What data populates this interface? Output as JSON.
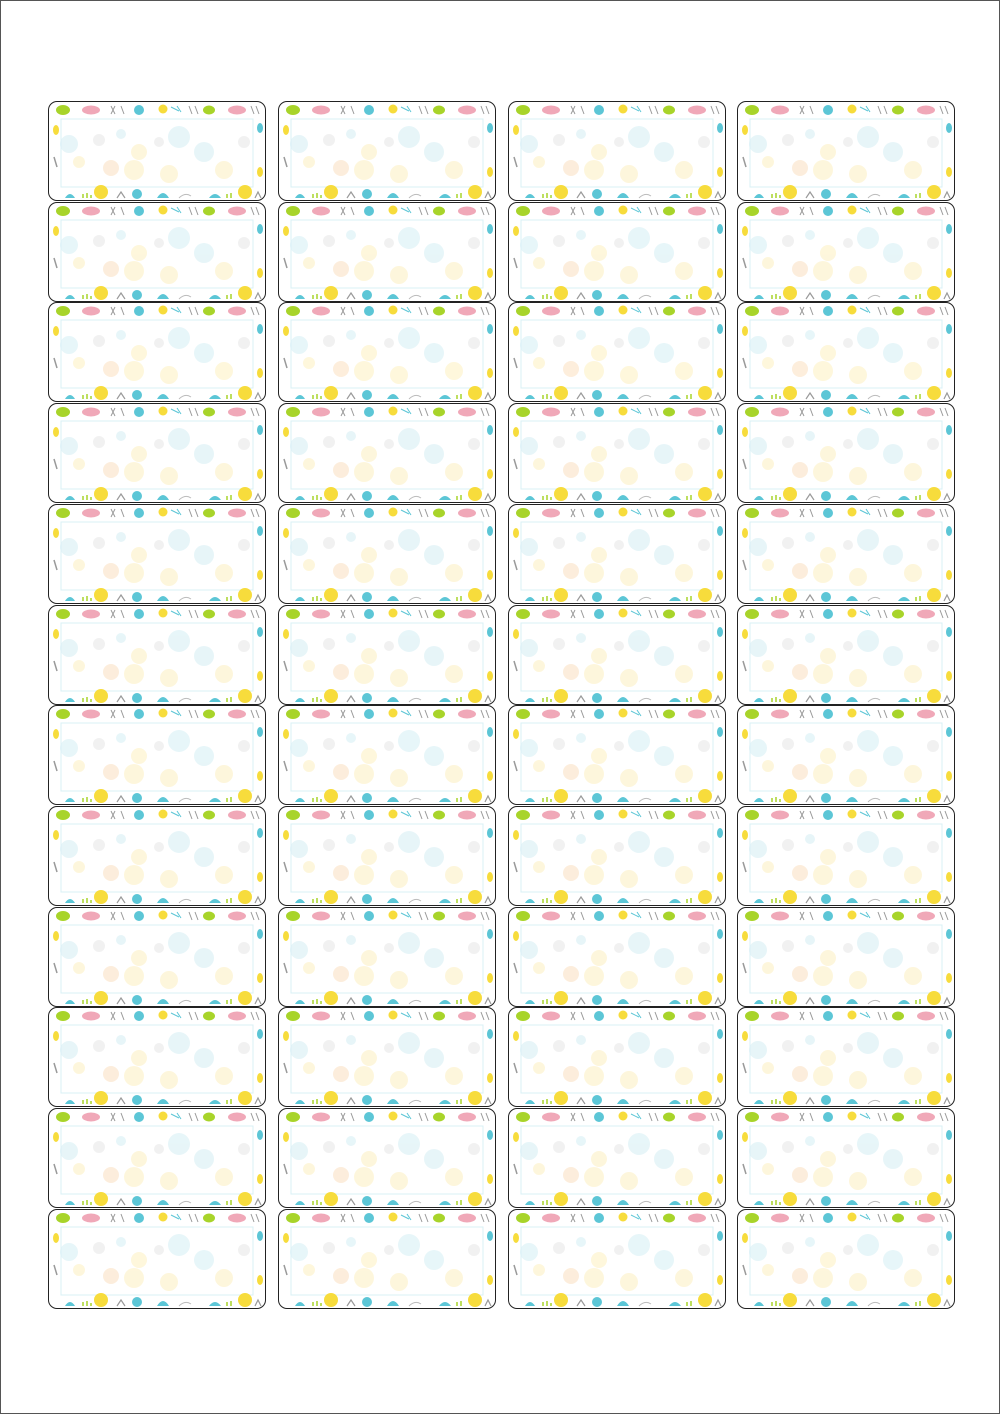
{
  "sheet": {
    "columns": 4,
    "rows": 12,
    "label_style": "floral pattern border, blank center",
    "colors": {
      "border": "#222222",
      "lime": "#a8d42a",
      "pink": "#f0a8b8",
      "cyan": "#5cc6d6",
      "yellow": "#f7dc3c",
      "gray": "#9a9a9a",
      "pale_yellow": "#fdf0c0",
      "pale_cyan": "#d4eef4",
      "pale_orange": "#fbe0c0",
      "frame": "#d8f0f6"
    }
  }
}
